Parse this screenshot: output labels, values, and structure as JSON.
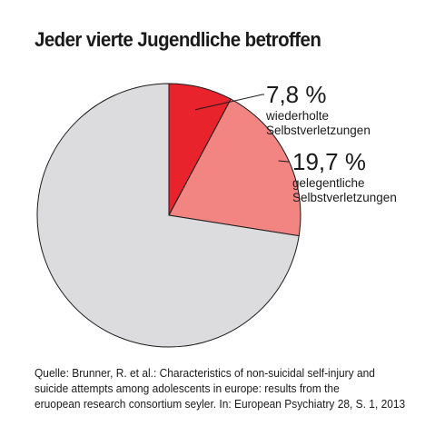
{
  "title": "Jeder vierte Jugendliche betroffen",
  "chart_data": {
    "type": "pie",
    "start_angle_deg": 0,
    "direction": "clockwise",
    "slices": [
      {
        "value": 7.8,
        "value_label": "7,8 %",
        "label_lines": [
          "wiederholte",
          "Selbstverletzungen"
        ],
        "color": "#e8232b"
      },
      {
        "value": 19.7,
        "value_label": "19,7 %",
        "label_lines": [
          "gelegentliche",
          "Selbstverletzungen"
        ],
        "color": "#f28482"
      },
      {
        "value": 72.5,
        "value_label": "",
        "label_lines": [],
        "color": "#dcdcde"
      }
    ],
    "slice_border_color": "#1a1a1a"
  },
  "source": {
    "lines": [
      "Quelle: Brunner, R. et al.: Characteristics of non-suicidal self-injury and",
      "suicide attempts among adolescents in europe: results from the",
      "eruopean research consortium seyler. In: European Psychiatry 28, S. 1, 2013"
    ]
  }
}
